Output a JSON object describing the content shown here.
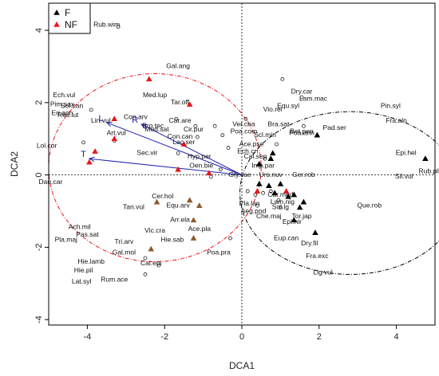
{
  "chart_data": {
    "type": "scatter",
    "xlabel": "DCA1",
    "ylabel": "DCA2",
    "xlim": [
      -5.0,
      5.0
    ],
    "ylim": [
      -4.15,
      4.75
    ],
    "xticks": [
      -4,
      -2,
      0,
      2,
      4
    ],
    "yticks": [
      -4,
      -2,
      0,
      2,
      4
    ],
    "reference_lines": {
      "x": 0,
      "y": 0
    },
    "legend": {
      "position": "top-left",
      "entries": [
        {
          "label": "F",
          "marker": "triangle",
          "color": "#000000"
        },
        {
          "label": "NF",
          "marker": "triangle",
          "color": "#e8161b"
        }
      ]
    },
    "points": {
      "F": [
        [
          4.75,
          0.45
        ],
        [
          1.95,
          1.1
        ],
        [
          0.45,
          0.3
        ],
        [
          0.8,
          0.6
        ],
        [
          0.75,
          0.45
        ],
        [
          1.0,
          -0.25
        ],
        [
          0.7,
          -0.3
        ],
        [
          0.85,
          -0.5
        ],
        [
          1.2,
          -0.6
        ],
        [
          1.35,
          -0.55
        ],
        [
          1.6,
          -0.75
        ],
        [
          1.35,
          -1.25
        ],
        [
          1.5,
          -0.9
        ],
        [
          1.9,
          -1.6
        ],
        [
          0.45,
          -0.25
        ]
      ],
      "NF": [
        [
          -2.4,
          2.65
        ],
        [
          -1.35,
          1.95
        ],
        [
          -3.3,
          1.55
        ],
        [
          -3.3,
          1.0
        ],
        [
          -3.8,
          0.65
        ],
        [
          -3.95,
          0.35
        ],
        [
          -1.5,
          0.85
        ],
        [
          -1.65,
          0.15
        ],
        [
          -0.85,
          0.05
        ],
        [
          0.4,
          -0.45
        ],
        [
          1.15,
          -0.45
        ]
      ],
      "mixed": [
        [
          -2.2,
          -0.75
        ],
        [
          -1.35,
          -0.7
        ],
        [
          -1.1,
          -0.85
        ],
        [
          -1.25,
          -1.25
        ],
        [
          -2.35,
          -2.05
        ],
        [
          -1.25,
          -1.75
        ]
      ]
    },
    "sample_circles": [
      [
        -3.2,
        4.1
      ],
      [
        -3.9,
        1.8
      ],
      [
        -3.3,
        0.95
      ],
      [
        -1.7,
        1.55
      ],
      [
        -1.15,
        1.05
      ],
      [
        -1.65,
        0.6
      ],
      [
        -1.2,
        1.35
      ],
      [
        0.1,
        1.55
      ],
      [
        -0.5,
        1.1
      ],
      [
        -0.7,
        1.35
      ],
      [
        -0.55,
        0.15
      ],
      [
        -0.8,
        -0.05
      ],
      [
        0.15,
        -0.45
      ],
      [
        0.35,
        -0.55
      ],
      [
        0.55,
        -0.5
      ],
      [
        0.75,
        -0.45
      ],
      [
        0.95,
        -0.7
      ],
      [
        1.0,
        -0.9
      ],
      [
        0.4,
        -0.85
      ],
      [
        -0.3,
        -1.75
      ],
      [
        -2.5,
        -2.3
      ],
      [
        -2.15,
        -2.5
      ],
      [
        -2.5,
        -2.75
      ],
      [
        -4.1,
        0.9
      ],
      [
        -0.35,
        0.75
      ],
      [
        1.05,
        2.65
      ],
      [
        1.55,
        2.15
      ],
      [
        0.6,
        0.45
      ],
      [
        0.9,
        0.85
      ],
      [
        1.6,
        1.35
      ]
    ],
    "species_labels": [
      {
        "name": "Rub.wim",
        "x": -3.5,
        "y": 4.1
      },
      {
        "name": "Gal.ang",
        "x": -1.65,
        "y": 2.95
      },
      {
        "name": "Sol.can",
        "x": -4.4,
        "y": 1.85
      },
      {
        "name": "Med.lup",
        "x": -2.25,
        "y": 2.15
      },
      {
        "name": "Tar.off",
        "x": -1.6,
        "y": 1.95
      },
      {
        "name": "Res.lut",
        "x": -4.5,
        "y": 1.6
      },
      {
        "name": "Ech.vul",
        "x": -4.6,
        "y": 2.15
      },
      {
        "name": "Pim.sax",
        "x": -4.65,
        "y": 1.9
      },
      {
        "name": "Eri.ann",
        "x": -4.65,
        "y": 1.65
      },
      {
        "name": "Lin.vul",
        "x": -3.65,
        "y": 1.45
      },
      {
        "name": "Con.arv",
        "x": -2.75,
        "y": 1.55
      },
      {
        "name": "Med.sat",
        "x": -2.2,
        "y": 1.2
      },
      {
        "name": "Car.are",
        "x": -1.6,
        "y": 1.45
      },
      {
        "name": "Cir.pur",
        "x": -1.25,
        "y": 1.2
      },
      {
        "name": "Con.can",
        "x": -1.6,
        "y": 1.0
      },
      {
        "name": "Art.vul",
        "x": -3.25,
        "y": 1.1
      },
      {
        "name": "Bro.tec",
        "x": -2.3,
        "y": 1.3
      },
      {
        "name": "Lol.cor",
        "x": -5.05,
        "y": 0.75
      },
      {
        "name": "Lac.ser",
        "x": -1.5,
        "y": 0.85
      },
      {
        "name": "Dau.car",
        "x": -4.95,
        "y": -0.25
      },
      {
        "name": "Sec.vir",
        "x": -2.45,
        "y": 0.55
      },
      {
        "name": "Hyp.per",
        "x": -1.1,
        "y": 0.45
      },
      {
        "name": "Oen.bie",
        "x": -1.05,
        "y": 0.2
      },
      {
        "name": "Cer.hol",
        "x": -2.05,
        "y": -0.65
      },
      {
        "name": "Equ.arv",
        "x": -1.65,
        "y": -0.9
      },
      {
        "name": "Tan.vul",
        "x": -2.8,
        "y": -0.95
      },
      {
        "name": "Arr.ela",
        "x": -1.6,
        "y": -1.3
      },
      {
        "name": "Ace.pla",
        "x": -1.1,
        "y": -1.55
      },
      {
        "name": "Vic.cra",
        "x": -2.25,
        "y": -1.6
      },
      {
        "name": "Hie.sab",
        "x": -1.8,
        "y": -1.85
      },
      {
        "name": "Ach.mil",
        "x": -4.2,
        "y": -1.5
      },
      {
        "name": "Pas.sat",
        "x": -4.0,
        "y": -1.7
      },
      {
        "name": "Pla.maj",
        "x": -4.55,
        "y": -1.85
      },
      {
        "name": "Tri.arv",
        "x": -3.05,
        "y": -1.9
      },
      {
        "name": "Gal.mol",
        "x": -3.05,
        "y": -2.2
      },
      {
        "name": "Hie.lamb",
        "x": -3.9,
        "y": -2.45
      },
      {
        "name": "Cal.epi",
        "x": -2.35,
        "y": -2.5
      },
      {
        "name": "Hie.pil",
        "x": -4.1,
        "y": -2.7
      },
      {
        "name": "Rum.ace",
        "x": -3.3,
        "y": -2.95
      },
      {
        "name": "Lat.syl",
        "x": -4.15,
        "y": -3.0
      },
      {
        "name": "Poa.pra",
        "x": -0.6,
        "y": -2.2
      },
      {
        "name": "Dry.car",
        "x": 1.55,
        "y": 2.25
      },
      {
        "name": "Lam.mac",
        "x": 1.85,
        "y": 2.05
      },
      {
        "name": "Equ.syl",
        "x": 1.2,
        "y": 1.85
      },
      {
        "name": "Vio.rei",
        "x": 0.8,
        "y": 1.75
      },
      {
        "name": "Bet.pen",
        "x": 1.55,
        "y": 1.15
      },
      {
        "name": "Pin.syl",
        "x": 3.85,
        "y": 1.85
      },
      {
        "name": "Fra.aln",
        "x": 4.0,
        "y": 1.45
      },
      {
        "name": "Pad.ser",
        "x": 2.4,
        "y": 1.25
      },
      {
        "name": "Ver.cha",
        "x": 0.05,
        "y": 1.35
      },
      {
        "name": "Poa.com",
        "x": 0.05,
        "y": 1.15
      },
      {
        "name": "Bra.sat",
        "x": 0.95,
        "y": 1.35
      },
      {
        "name": "Scl.min",
        "x": 0.6,
        "y": 1.05
      },
      {
        "name": "Poa.ann",
        "x": 1.55,
        "y": 1.1
      },
      {
        "name": "Ace.pse",
        "x": 0.25,
        "y": 0.8
      },
      {
        "name": "Ech.cri",
        "x": 0.15,
        "y": 0.6
      },
      {
        "name": "Cal.sep",
        "x": 0.35,
        "y": 0.45
      },
      {
        "name": "Epi.hel",
        "x": 4.25,
        "y": 0.55
      },
      {
        "name": "Rub.pli",
        "x": 4.85,
        "y": 0.05
      },
      {
        "name": "Sil.vul",
        "x": 4.2,
        "y": -0.1
      },
      {
        "name": "Imp.par",
        "x": 0.55,
        "y": 0.2
      },
      {
        "name": "Gly.cae",
        "x": -0.05,
        "y": -0.05
      },
      {
        "name": "Urs.nuv",
        "x": 0.75,
        "y": -0.05
      },
      {
        "name": "Ger.rob",
        "x": 1.6,
        "y": -0.05
      },
      {
        "name": "Car.med",
        "x": 1.0,
        "y": -0.6
      },
      {
        "name": "Lam.nig",
        "x": 1.05,
        "y": -0.8
      },
      {
        "name": "Pla.lan",
        "x": 0.2,
        "y": -0.85
      },
      {
        "name": "Aeg.pod",
        "x": 0.3,
        "y": -1.05
      },
      {
        "name": "Sol.lg",
        "x": 1.0,
        "y": -0.95
      },
      {
        "name": "Che.maj",
        "x": 0.7,
        "y": -1.2
      },
      {
        "name": "Tor.jap",
        "x": 1.55,
        "y": -1.2
      },
      {
        "name": "Epi.hir",
        "x": 1.3,
        "y": -1.35
      },
      {
        "name": "Que.rob",
        "x": 3.3,
        "y": -0.9
      },
      {
        "name": "Eup.can",
        "x": 1.15,
        "y": -1.8
      },
      {
        "name": "Dry.fil",
        "x": 1.75,
        "y": -1.95
      },
      {
        "name": "Fra.exc",
        "x": 1.95,
        "y": -2.3
      },
      {
        "name": "Lig.vul",
        "x": 2.1,
        "y": -2.75
      }
    ],
    "vectors": [
      {
        "label": "L",
        "to": [
          -3.5,
          1.45
        ]
      },
      {
        "label": "R",
        "to": [
          -2.6,
          1.4
        ]
      },
      {
        "label": "T",
        "to": [
          -3.95,
          0.45
        ]
      }
    ],
    "ellipses": [
      {
        "group": "NF",
        "color": "#e8161b",
        "cx": -2.25,
        "cy": 0.2,
        "rx": 2.75,
        "ry": 2.6
      },
      {
        "group": "F",
        "color": "#000000",
        "cx": 2.8,
        "cy": -0.5,
        "rx": 2.85,
        "ry": 2.25
      }
    ],
    "colors": {
      "F": "#000000",
      "NF": "#e8161b",
      "mixed": "#8b5a2b",
      "vector": "#2424b0",
      "nf_ellipse": "#e8161b",
      "f_ellipse": "#000000"
    }
  }
}
